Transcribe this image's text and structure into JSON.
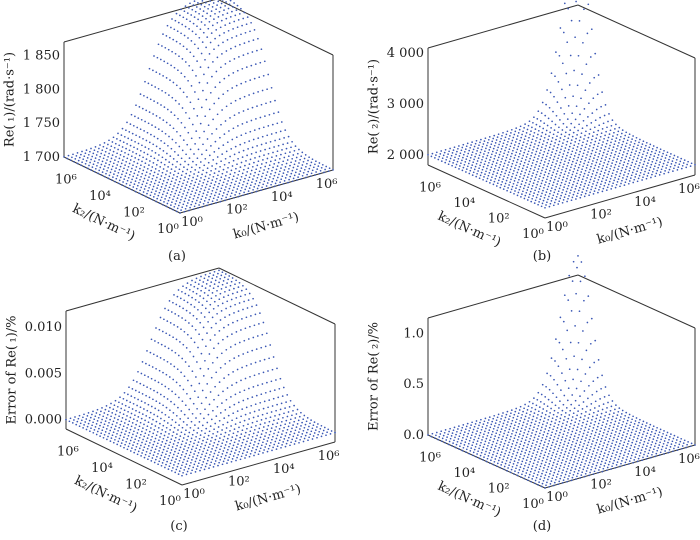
{
  "chart_data": [
    {
      "panel": "(a)",
      "type": "scatter",
      "subtype": "3d-surface-dots",
      "zlabel": "Re( ₁)/(rad·s⁻¹)",
      "xlabel": "k₀/(N·m⁻¹)",
      "ylabel": "k₂/(N·m⁻¹)",
      "x_ticks": [
        "10⁰",
        "10²",
        "10⁴",
        "10⁶"
      ],
      "y_ticks": [
        "10⁰",
        "10²",
        "10⁴",
        "10⁶"
      ],
      "z_ticks": [
        "1 700",
        "1 750",
        "1 800",
        "1 850"
      ],
      "z_tick_values": [
        1700,
        1750,
        1800,
        1850
      ],
      "x_scale": "log",
      "y_scale": "log",
      "xlim": [
        1,
        1000000
      ],
      "ylim": [
        1,
        1000000
      ],
      "zlim": [
        1700,
        1870
      ],
      "surface": {
        "base": 1700,
        "peak": 1880,
        "shape": "sigmoid ridge toward high k0 and high k2"
      },
      "color": "#3a57b5"
    },
    {
      "panel": "(b)",
      "type": "scatter",
      "subtype": "3d-surface-dots",
      "zlabel": "Re( ₂)/(rad·s⁻¹)",
      "xlabel": "k₀/(N·m⁻¹)",
      "ylabel": "k₂/(N·m⁻¹)",
      "x_ticks": [
        "10⁰",
        "10²",
        "10⁴",
        "10⁶"
      ],
      "y_ticks": [
        "10⁰",
        "10²",
        "10⁴",
        "10⁶"
      ],
      "z_ticks": [
        "2 000",
        "3 000",
        "4 000"
      ],
      "z_tick_values": [
        2000,
        3000,
        4000
      ],
      "x_scale": "log",
      "y_scale": "log",
      "xlim": [
        1,
        1000000
      ],
      "ylim": [
        1,
        1000000
      ],
      "zlim": [
        1800,
        4100
      ],
      "surface": {
        "base": 2000,
        "peak": 4900,
        "shape": "sharp peak at high k0 and high k2"
      },
      "color": "#3a57b5"
    },
    {
      "panel": "(c)",
      "type": "scatter",
      "subtype": "3d-surface-dots",
      "zlabel": "Error of Re( ₁)/%",
      "xlabel": "k₀/(N·m⁻¹)",
      "ylabel": "k₂/(N·m⁻¹)",
      "x_ticks": [
        "10⁰",
        "10²",
        "10⁴",
        "10⁶"
      ],
      "y_ticks": [
        "10⁰",
        "10²",
        "10⁴",
        "10⁶"
      ],
      "z_ticks": [
        "0.000",
        "0.005",
        "0.010"
      ],
      "z_tick_values": [
        0,
        0.005,
        0.01
      ],
      "x_scale": "log",
      "y_scale": "log",
      "xlim": [
        1,
        1000000
      ],
      "ylim": [
        1,
        1000000
      ],
      "zlim": [
        -0.001,
        0.0117
      ],
      "surface": {
        "base": 0,
        "peak": 0.0115,
        "shape": "sigmoid ridge toward high k0 and high k2"
      },
      "color": "#3a57b5"
    },
    {
      "panel": "(d)",
      "type": "scatter",
      "subtype": "3d-surface-dots",
      "zlabel": "Error of Re( ₂)/%",
      "xlabel": "k₀/(N·m⁻¹)",
      "ylabel": "k₂/(N·m⁻¹)",
      "x_ticks": [
        "10⁰",
        "10²",
        "10⁴",
        "10⁶"
      ],
      "y_ticks": [
        "10⁰",
        "10²",
        "10⁴",
        "10⁶"
      ],
      "z_ticks": [
        "0.0",
        "0.5",
        "1.0"
      ],
      "z_tick_values": [
        0,
        0.5,
        1.0
      ],
      "x_scale": "log",
      "y_scale": "log",
      "xlim": [
        1,
        1000000
      ],
      "ylim": [
        1,
        1000000
      ],
      "zlim": [
        0,
        1.15
      ],
      "surface": {
        "base": 0,
        "peak": 1.3,
        "shape": "sharp peak at high k0 and high k2"
      },
      "color": "#3a57b5"
    }
  ]
}
